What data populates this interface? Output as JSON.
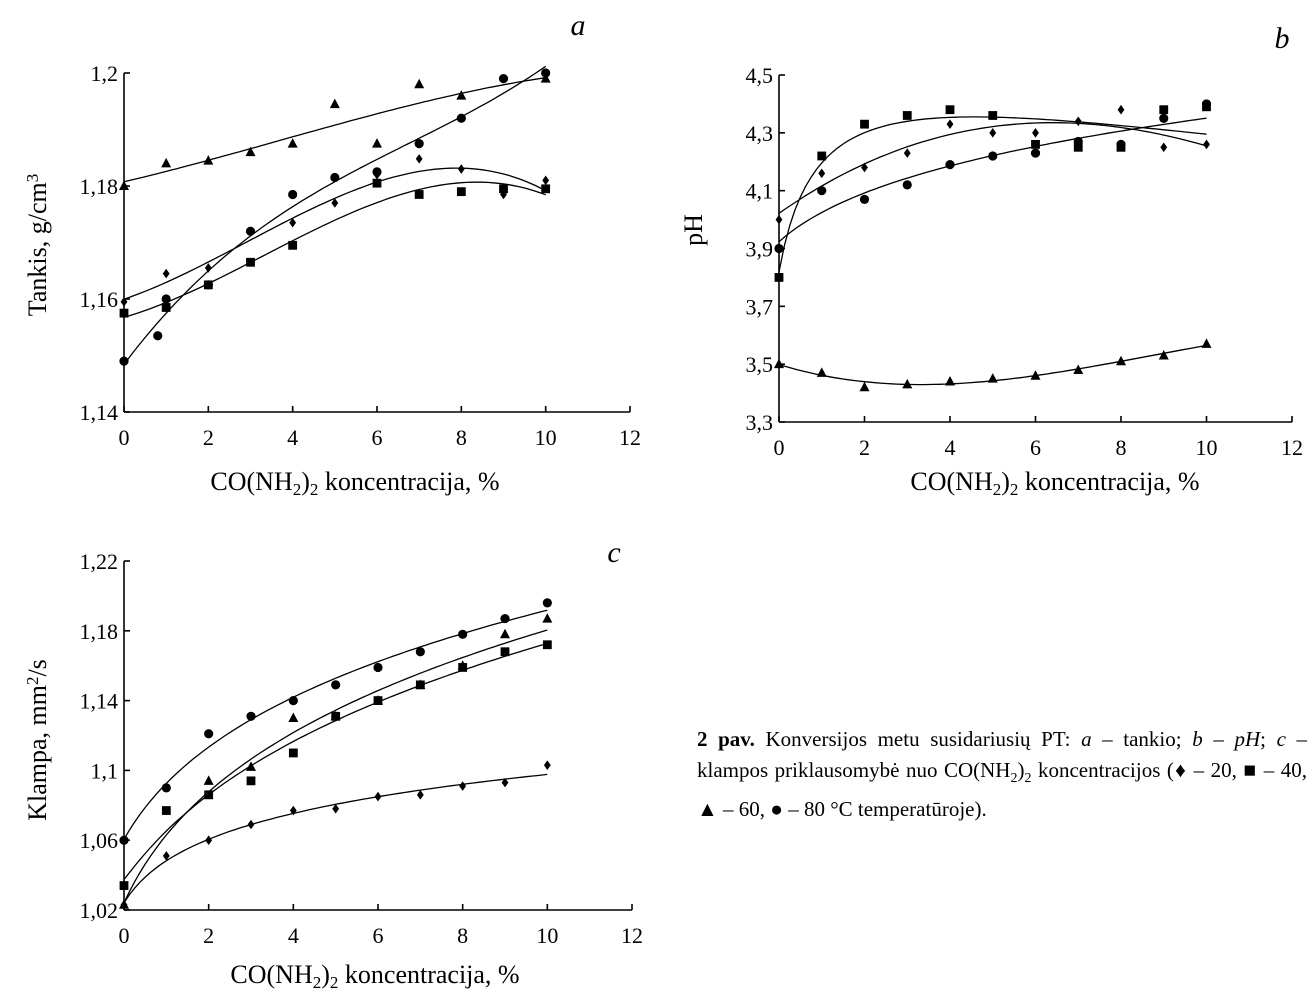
{
  "chart_data": [
    {
      "id": "a",
      "type": "scatter",
      "panel_label": "a",
      "xlabel": "CO(NH2)2 koncentracija, %",
      "ylabel": "Tankis, g/cm3",
      "xlim": [
        0,
        12
      ],
      "ylim": [
        1.14,
        1.2
      ],
      "x_ticks": [
        0,
        2,
        4,
        6,
        8,
        10,
        12
      ],
      "y_ticks": [
        1.14,
        1.16,
        1.18,
        1.2
      ],
      "x_tick_labels": [
        "0",
        "2",
        "4",
        "6",
        "8",
        "10",
        "12"
      ],
      "y_tick_labels": [
        "1,14",
        "1,16",
        "1,18",
        "1,2"
      ],
      "grid": false,
      "series": [
        {
          "marker": "diamond",
          "x": [
            0,
            1,
            2,
            4,
            5,
            6,
            7,
            8,
            9,
            10
          ],
          "y": [
            1.1595,
            1.1645,
            1.1655,
            1.1735,
            1.177,
            1.182,
            1.1848,
            1.183,
            1.1785,
            1.181
          ],
          "fit": "poly"
        },
        {
          "marker": "square",
          "x": [
            0,
            1,
            2,
            3,
            4,
            6,
            7,
            8,
            9,
            10
          ],
          "y": [
            1.1575,
            1.1585,
            1.1625,
            1.1665,
            1.1695,
            1.1805,
            1.1785,
            1.179,
            1.1795,
            1.1795
          ],
          "fit": "poly"
        },
        {
          "marker": "triangle",
          "x": [
            0,
            1,
            2,
            3,
            4,
            5,
            6,
            7,
            8,
            10
          ],
          "y": [
            1.18,
            1.184,
            1.1845,
            1.186,
            1.1875,
            1.1945,
            1.1875,
            1.198,
            1.196,
            1.199
          ],
          "fit": "poly"
        },
        {
          "marker": "circle",
          "x": [
            0,
            0.8,
            1,
            2,
            3,
            4,
            5,
            6,
            7,
            8,
            9,
            10
          ],
          "y": [
            1.149,
            1.1535,
            1.16,
            1.1625,
            1.172,
            1.1785,
            1.1815,
            1.1825,
            1.1875,
            1.192,
            1.199,
            1.2
          ],
          "fit": "poly"
        }
      ]
    },
    {
      "id": "b",
      "type": "scatter",
      "panel_label": "b",
      "xlabel": "CO(NH2)2 koncentracija, %",
      "ylabel": "pH",
      "xlim": [
        0,
        12
      ],
      "ylim": [
        3.3,
        4.5
      ],
      "x_ticks": [
        0,
        2,
        4,
        6,
        8,
        10,
        12
      ],
      "y_ticks": [
        3.3,
        3.5,
        3.7,
        3.9,
        4.1,
        4.3,
        4.5
      ],
      "x_tick_labels": [
        "0",
        "2",
        "4",
        "6",
        "8",
        "10",
        "12"
      ],
      "y_tick_labels": [
        "3,3",
        "3,5",
        "3,7",
        "3,9",
        "4,1",
        "4,3",
        "4,5"
      ],
      "grid": false,
      "series": [
        {
          "marker": "diamond",
          "x": [
            0,
            1,
            2,
            3,
            4,
            5,
            6,
            7,
            8,
            9,
            10
          ],
          "y": [
            4.0,
            4.16,
            4.18,
            4.23,
            4.33,
            4.3,
            4.3,
            4.34,
            4.38,
            4.25,
            4.26
          ],
          "fit": "poly"
        },
        {
          "marker": "square",
          "x": [
            0,
            1,
            2,
            3,
            4,
            5,
            6,
            7,
            8,
            9,
            10
          ],
          "y": [
            3.8,
            4.22,
            4.33,
            4.36,
            4.38,
            4.36,
            4.26,
            4.25,
            4.25,
            4.38,
            4.39
          ],
          "fit": "log"
        },
        {
          "marker": "triangle",
          "x": [
            0,
            1,
            2,
            3,
            4,
            5,
            6,
            7,
            8,
            9,
            10
          ],
          "y": [
            3.5,
            3.47,
            3.42,
            3.43,
            3.44,
            3.45,
            3.46,
            3.48,
            3.51,
            3.53,
            3.57
          ],
          "fit": "poly"
        },
        {
          "marker": "circle",
          "x": [
            0,
            1,
            2,
            3,
            4,
            5,
            6,
            7,
            8,
            9,
            10
          ],
          "y": [
            3.9,
            4.1,
            4.07,
            4.12,
            4.19,
            4.22,
            4.23,
            4.27,
            4.26,
            4.35,
            4.4
          ],
          "fit": "log"
        }
      ]
    },
    {
      "id": "c",
      "type": "scatter",
      "panel_label": "c",
      "xlabel": "CO(NH2)2 koncentracija, %",
      "ylabel": "Klampa, mm2/s",
      "xlim": [
        0,
        12
      ],
      "ylim": [
        1.02,
        1.22
      ],
      "x_ticks": [
        0,
        2,
        4,
        6,
        8,
        10,
        12
      ],
      "y_ticks": [
        1.02,
        1.06,
        1.1,
        1.14,
        1.18,
        1.22
      ],
      "x_tick_labels": [
        "0",
        "2",
        "4",
        "6",
        "8",
        "10",
        "12"
      ],
      "y_tick_labels": [
        "1,02",
        "1,06",
        "1,1",
        "1,14",
        "1,18",
        "1,22"
      ],
      "grid": false,
      "series": [
        {
          "marker": "diamond",
          "x": [
            0,
            1,
            2,
            3,
            4,
            5,
            6,
            7,
            8,
            9,
            10
          ],
          "y": [
            1.023,
            1.051,
            1.06,
            1.069,
            1.077,
            1.078,
            1.085,
            1.086,
            1.091,
            1.093,
            1.103
          ],
          "fit": "log"
        },
        {
          "marker": "square",
          "x": [
            0,
            1,
            2,
            3,
            4,
            5,
            6,
            7,
            8,
            9,
            10
          ],
          "y": [
            1.034,
            1.077,
            1.086,
            1.094,
            1.11,
            1.131,
            1.14,
            1.149,
            1.159,
            1.168,
            1.172
          ],
          "fit": "log"
        },
        {
          "marker": "triangle",
          "x": [
            0,
            2,
            3,
            4,
            5,
            6,
            7,
            8,
            9,
            10
          ],
          "y": [
            1.023,
            1.094,
            1.102,
            1.13,
            1.131,
            1.14,
            1.149,
            1.16,
            1.178,
            1.187
          ],
          "fit": "log"
        },
        {
          "marker": "circle",
          "x": [
            0,
            1,
            2,
            3,
            4,
            5,
            6,
            7,
            8,
            9,
            10
          ],
          "y": [
            1.06,
            1.09,
            1.121,
            1.131,
            1.14,
            1.149,
            1.159,
            1.168,
            1.178,
            1.187,
            1.196
          ],
          "fit": "log"
        }
      ]
    }
  ],
  "caption": {
    "bold": "2 pav.",
    "part1": " Konversijos metu susidariusių PT: ",
    "a_letter": "a",
    "part2": " – tankio; ",
    "b_letter": "b",
    "part3": " – ",
    "ph_text": "pH",
    "part4": "; ",
    "c_letter": "c",
    "part5": " – klampos priklausomybė nuo CO(NH",
    "sub1": "2",
    "part6": ")",
    "sub2": "2",
    "part7": " koncentracijos (♦ – 20, ■ – 40, ▲ – 60, ● – 80 °C temperatūroje)."
  }
}
